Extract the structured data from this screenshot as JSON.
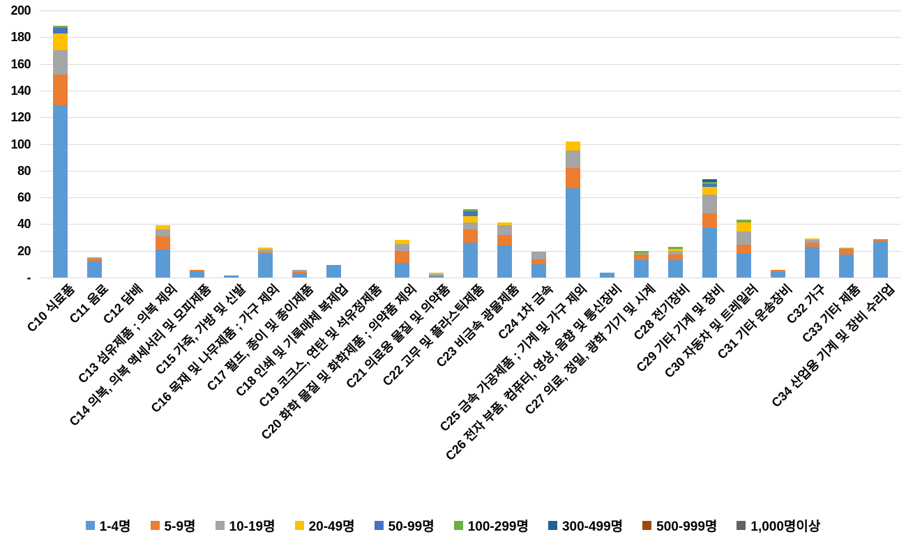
{
  "chart_data": {
    "type": "bar",
    "stacked": true,
    "title": "",
    "grid": true,
    "legend_position": "bottom",
    "axis_color": "#D9D9D9",
    "text_color": "#000000",
    "ylim": [
      0,
      200
    ],
    "ytick_step": 20,
    "ytick_labels": [
      "-",
      "20",
      "40",
      "60",
      "80",
      "100",
      "120",
      "140",
      "160",
      "180",
      "200"
    ],
    "categories": [
      "C10 식료품",
      "C11 음료",
      "C12 담배",
      "C13 섬유제품 ; 의복 제외",
      "C14 의복, 의복 액세서리 및 모피제품",
      "C15 가죽, 가방 및 신발",
      "C16 목재 및 나무제품 ; 가구 제외",
      "C17 펄프, 종이 및 종이제품",
      "C18 인쇄 및 기록매체 복제업",
      "C19 코크스, 연탄 및 석유정제품",
      "C20 화학 물질 및 화학제품 ; 의약품 제외",
      "C21 의료용 물질 및 의약품",
      "C22 고무 및 플라스틱제품",
      "C23 비금속 광물제품",
      "C24 1차 금속",
      "C25 금속 가공제품 ; 기계 및 가구 제외",
      "C26 전자 부품, 컴퓨터, 영상, 음향 및 통신장비",
      "C27 의료, 정밀, 광학 기기 및 시계",
      "C28 전기장비",
      "C29 기타 기계 및 장비",
      "C30 자동차 및 트레일러",
      "C31 기타 운송장비",
      "C32 가구",
      "C33 기타 제품",
      "C34 산업용 기계 및 장비 수리업"
    ],
    "series": [
      {
        "name": "1-4명",
        "color": "#5B9BD5",
        "values": [
          129,
          12,
          0,
          21,
          4.5,
          1.5,
          17.5,
          3,
          9.5,
          0,
          11,
          1,
          26,
          24,
          10,
          67,
          3.5,
          13,
          13,
          37,
          18,
          4,
          23,
          17,
          27
        ]
      },
      {
        "name": "5-9명",
        "color": "#ED7D31",
        "values": [
          23,
          2,
          0,
          10,
          1,
          0,
          1.5,
          1,
          0,
          0,
          9,
          0.5,
          10,
          8,
          3.5,
          15,
          0,
          4,
          4,
          11,
          6.5,
          2,
          3,
          4.5,
          1.5
        ]
      },
      {
        "name": "10-19명",
        "color": "#A5A5A5",
        "values": [
          18,
          1,
          0,
          5,
          0,
          0,
          2,
          2,
          0,
          0,
          5,
          1,
          5,
          7,
          6,
          13,
          0,
          1.5,
          3,
          14,
          10,
          0,
          2,
          0.5,
          0
        ]
      },
      {
        "name": "20-49명",
        "color": "#FFC000",
        "values": [
          13,
          0,
          0,
          3,
          0,
          0,
          1.5,
          0,
          0,
          0,
          3,
          1,
          5,
          2,
          0,
          7,
          0,
          0,
          1.5,
          6,
          7,
          0,
          1.5,
          0.5,
          0
        ]
      },
      {
        "name": "50-99명",
        "color": "#4472C4",
        "values": [
          4,
          0,
          0,
          0,
          0,
          0,
          0,
          0,
          0,
          0,
          0,
          0,
          3.5,
          0,
          0,
          0,
          0,
          0,
          0,
          2,
          0,
          0,
          0,
          0,
          0
        ]
      },
      {
        "name": "100-299명",
        "color": "#70AD47",
        "values": [
          1.5,
          0,
          0,
          0,
          0,
          0,
          0,
          0,
          0,
          0,
          0,
          0,
          1.5,
          0,
          0,
          0,
          0,
          1.5,
          1.5,
          1.5,
          2,
          0,
          0,
          0,
          0
        ]
      },
      {
        "name": "300-499명",
        "color": "#255E91",
        "values": [
          0,
          0,
          0,
          0,
          0,
          0,
          0,
          0,
          0,
          0,
          0,
          0,
          0,
          0,
          0,
          0,
          0,
          0,
          0,
          2,
          0,
          0,
          0,
          0,
          0
        ]
      },
      {
        "name": "500-999명",
        "color": "#9E480E",
        "values": [
          0,
          0,
          0,
          0,
          0,
          0,
          0,
          0,
          0,
          0,
          0,
          0,
          0,
          0,
          0,
          0,
          0,
          0,
          0,
          0,
          0,
          0,
          0,
          0,
          0
        ]
      },
      {
        "name": "1,000명이상",
        "color": "#636363",
        "values": [
          0,
          0,
          0,
          0,
          0,
          0,
          0,
          0,
          0,
          0,
          0,
          0,
          0,
          0,
          0,
          0,
          0,
          0,
          0,
          0,
          0,
          0,
          0,
          0,
          0
        ]
      }
    ]
  }
}
